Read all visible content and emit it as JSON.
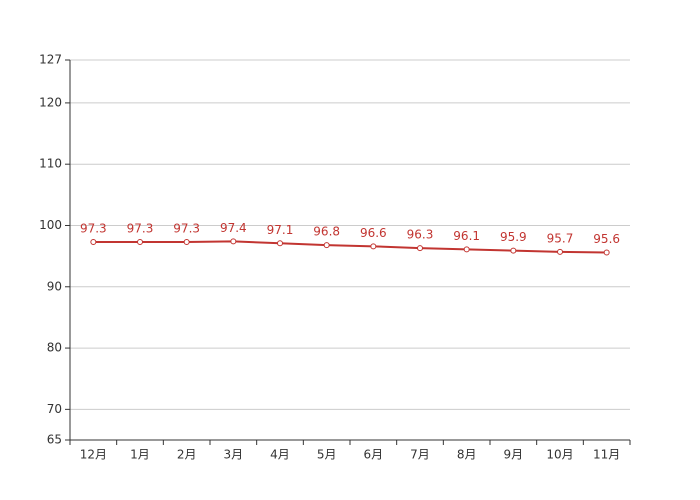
{
  "chart_data": {
    "type": "line",
    "categories": [
      "12月",
      "1月",
      "2月",
      "3月",
      "4月",
      "5月",
      "6月",
      "7月",
      "8月",
      "9月",
      "10月",
      "11月"
    ],
    "series": [
      {
        "color": "#c23531",
        "values": [
          97.3,
          97.3,
          97.3,
          97.4,
          97.1,
          96.8,
          96.6,
          96.3,
          96.1,
          95.9,
          95.7,
          95.6
        ]
      }
    ],
    "ylim": [
      65,
      127
    ],
    "yticks": [
      65,
      70,
      80,
      90,
      100,
      110,
      120,
      127
    ],
    "grid": true
  }
}
